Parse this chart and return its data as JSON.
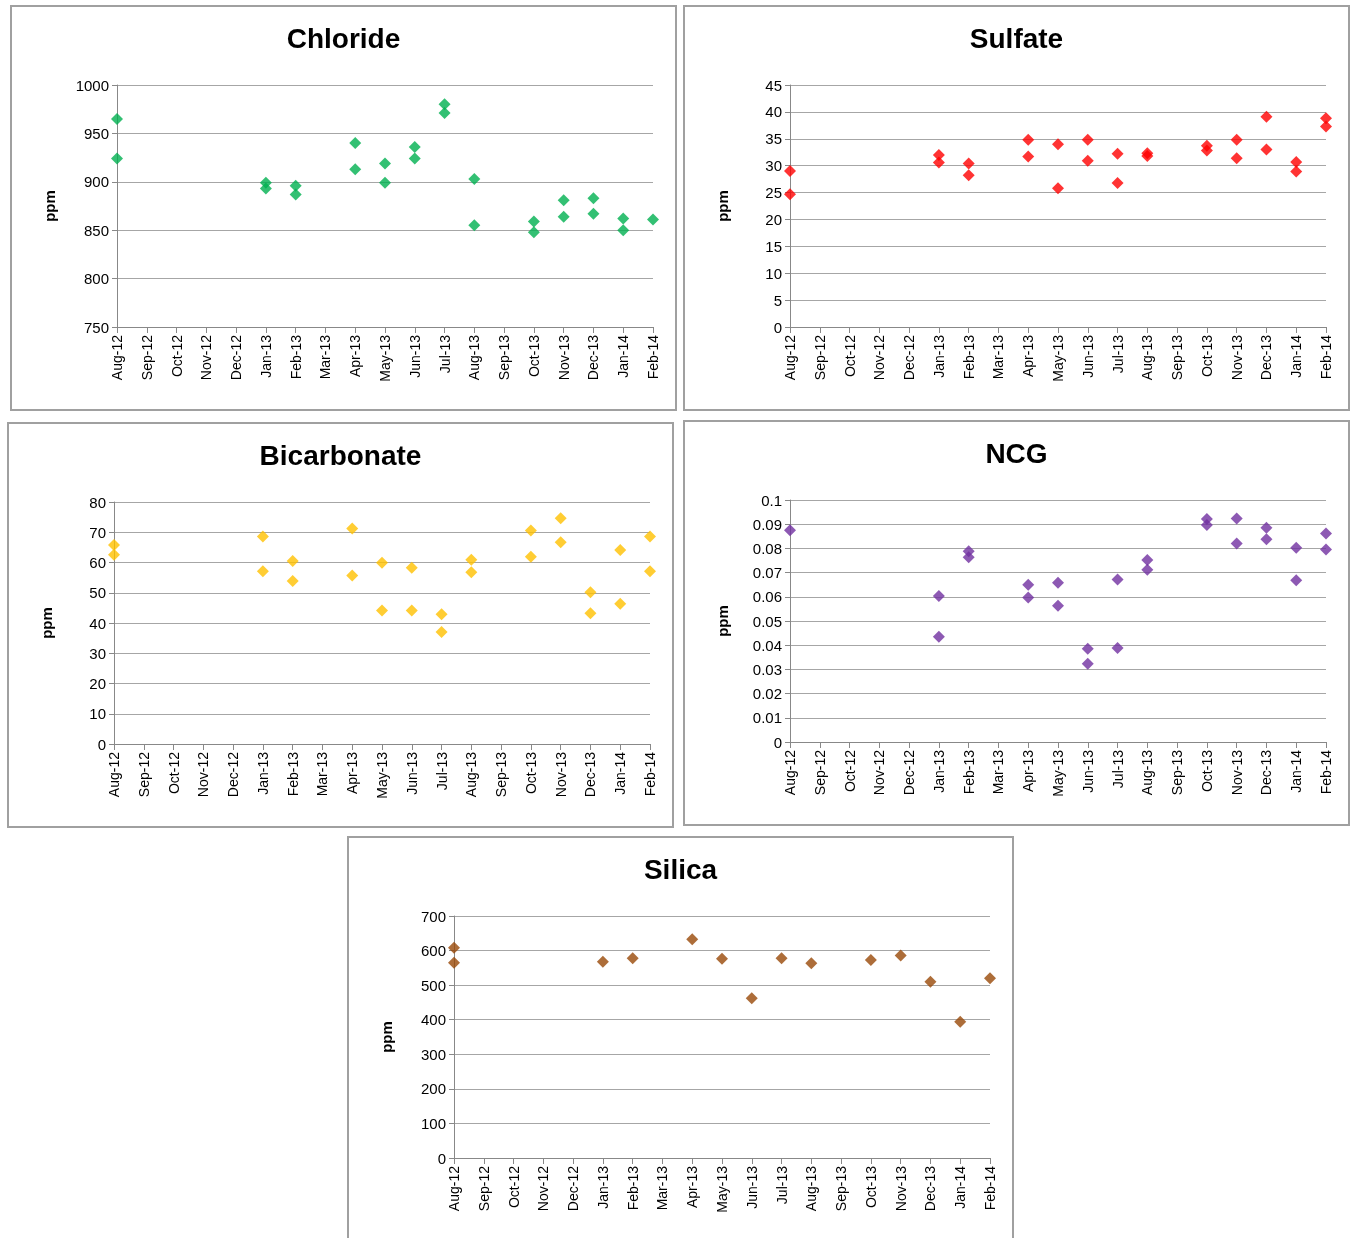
{
  "chart_data": [
    {
      "type": "scatter",
      "title": "Chloride",
      "ylabel": "ppm",
      "categories": [
        "Aug-12",
        "Sep-12",
        "Oct-12",
        "Nov-12",
        "Dec-12",
        "Jan-13",
        "Feb-13",
        "Mar-13",
        "Apr-13",
        "May-13",
        "Jun-13",
        "Jul-13",
        "Aug-13",
        "Sep-13",
        "Oct-13",
        "Nov-13",
        "Dec-13",
        "Jan-14",
        "Feb-14"
      ],
      "ylim": [
        750,
        1000
      ],
      "yticks": [
        750,
        800,
        850,
        900,
        950,
        1000
      ],
      "grid": "y",
      "marker": "diamond",
      "series": [
        {
          "color": "#00b050",
          "values": [
            965,
            null,
            null,
            null,
            null,
            899,
            896,
            null,
            940,
            919,
            936,
            980,
            903,
            null,
            859,
            881,
            883,
            862,
            861
          ]
        },
        {
          "color": "#00b050",
          "values": [
            924,
            null,
            null,
            null,
            null,
            893,
            887,
            null,
            913,
            899,
            924,
            971,
            855,
            null,
            848,
            864,
            867,
            850,
            null
          ]
        }
      ]
    },
    {
      "type": "scatter",
      "title": "Sulfate",
      "ylabel": "ppm",
      "categories": [
        "Aug-12",
        "Sep-12",
        "Oct-12",
        "Nov-12",
        "Dec-12",
        "Jan-13",
        "Feb-13",
        "Mar-13",
        "Apr-13",
        "May-13",
        "Jun-13",
        "Jul-13",
        "Aug-13",
        "Sep-13",
        "Oct-13",
        "Nov-13",
        "Dec-13",
        "Jan-14",
        "Feb-14"
      ],
      "ylim": [
        0,
        45
      ],
      "yticks": [
        0,
        5,
        10,
        15,
        20,
        25,
        30,
        35,
        40,
        45
      ],
      "grid": "y",
      "marker": "diamond",
      "series": [
        {
          "color": "#ff0000",
          "values": [
            29,
            null,
            null,
            null,
            null,
            32,
            30.4,
            null,
            34.8,
            34,
            34.8,
            32.2,
            32.3,
            null,
            33.7,
            34.8,
            39.1,
            30.7,
            38.8
          ]
        },
        {
          "color": "#ff0000",
          "values": [
            24.7,
            null,
            null,
            null,
            null,
            30.6,
            28.2,
            null,
            31.7,
            25.8,
            30.9,
            26.8,
            31.8,
            null,
            32.8,
            31.4,
            33,
            28.9,
            37.3
          ]
        }
      ]
    },
    {
      "type": "scatter",
      "title": "Bicarbonate",
      "ylabel": "ppm",
      "categories": [
        "Aug-12",
        "Sep-12",
        "Oct-12",
        "Nov-12",
        "Dec-12",
        "Jan-13",
        "Feb-13",
        "Mar-13",
        "Apr-13",
        "May-13",
        "Jun-13",
        "Jul-13",
        "Aug-13",
        "Sep-13",
        "Oct-13",
        "Nov-13",
        "Dec-13",
        "Jan-14",
        "Feb-14"
      ],
      "ylim": [
        0,
        80
      ],
      "yticks": [
        0,
        10,
        20,
        30,
        40,
        50,
        60,
        70,
        80
      ],
      "grid": "y",
      "marker": "diamond",
      "series": [
        {
          "color": "#ffc000",
          "values": [
            65.8,
            null,
            null,
            null,
            null,
            68.6,
            60.5,
            null,
            71.2,
            59.9,
            58.3,
            42.9,
            60.9,
            null,
            70.6,
            74.6,
            50.2,
            64.1,
            68.6
          ]
        },
        {
          "color": "#ffc000",
          "values": [
            62.6,
            null,
            null,
            null,
            null,
            57.1,
            53.9,
            null,
            55.7,
            44.1,
            44.1,
            37,
            56.8,
            null,
            61.9,
            66.7,
            43.2,
            46.4,
            57.1
          ]
        }
      ]
    },
    {
      "type": "scatter",
      "title": "NCG",
      "ylabel": "ppm",
      "categories": [
        "Aug-12",
        "Sep-12",
        "Oct-12",
        "Nov-12",
        "Dec-12",
        "Jan-13",
        "Feb-13",
        "Mar-13",
        "Apr-13",
        "May-13",
        "Jun-13",
        "Jul-13",
        "Aug-13",
        "Sep-13",
        "Oct-13",
        "Nov-13",
        "Dec-13",
        "Jan-14",
        "Feb-14"
      ],
      "ylim": [
        0,
        0.1
      ],
      "yticks": [
        0,
        0.01,
        0.02,
        0.03,
        0.04,
        0.05,
        0.06,
        0.07,
        0.08,
        0.09,
        0.1
      ],
      "grid": "y",
      "marker": "diamond",
      "series": [
        {
          "color": "#7030a0",
          "values": [
            0.0875,
            null,
            null,
            null,
            null,
            0.0603,
            0.0788,
            null,
            0.065,
            0.0658,
            0.0385,
            0.0671,
            0.0752,
            null,
            0.0921,
            0.0924,
            0.0885,
            0.0803,
            0.0862
          ]
        },
        {
          "color": "#7030a0",
          "values": [
            null,
            null,
            null,
            null,
            null,
            0.0435,
            0.0763,
            null,
            0.0597,
            0.0563,
            0.0323,
            0.0388,
            0.0712,
            null,
            0.0897,
            0.082,
            0.0838,
            0.0668,
            0.0795
          ]
        }
      ]
    },
    {
      "type": "scatter",
      "title": "Silica",
      "ylabel": "ppm",
      "categories": [
        "Aug-12",
        "Sep-12",
        "Oct-12",
        "Nov-12",
        "Dec-12",
        "Jan-13",
        "Feb-13",
        "Mar-13",
        "Apr-13",
        "May-13",
        "Jun-13",
        "Jul-13",
        "Aug-13",
        "Sep-13",
        "Oct-13",
        "Nov-13",
        "Dec-13",
        "Jan-14",
        "Feb-14"
      ],
      "ylim": [
        0,
        700
      ],
      "yticks": [
        0,
        100,
        200,
        300,
        400,
        500,
        600,
        700
      ],
      "grid": "y",
      "marker": "diamond",
      "series": [
        {
          "color": "#984807",
          "values": [
            608,
            null,
            null,
            null,
            null,
            568,
            578,
            null,
            633,
            576,
            462,
            578,
            563,
            null,
            573,
            586,
            510,
            394,
            520
          ]
        },
        {
          "color": "#984807",
          "values": [
            565,
            null,
            null,
            null,
            null,
            null,
            null,
            null,
            null,
            null,
            null,
            null,
            null,
            null,
            null,
            null,
            null,
            null,
            null
          ]
        }
      ]
    }
  ]
}
